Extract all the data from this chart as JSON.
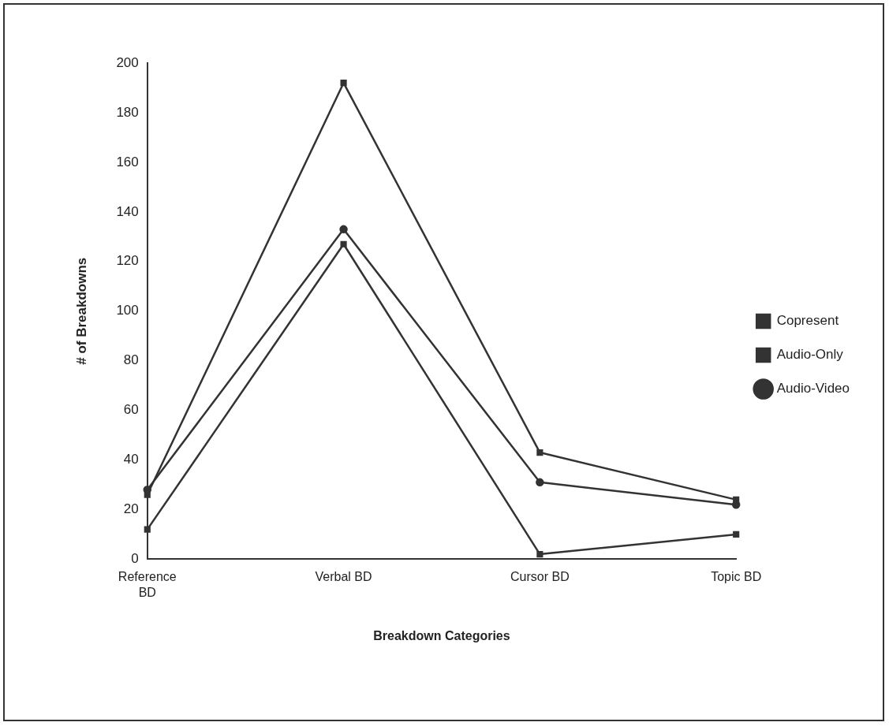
{
  "chart_data": {
    "type": "line",
    "xlabel": "Breakdown Categories",
    "ylabel": "# of Breakdowns",
    "categories": [
      "Reference BD",
      "Verbal BD",
      "Cursor BD",
      "Topic BD"
    ],
    "series": [
      {
        "name": "Copresent",
        "color": "#333333",
        "marker": "square",
        "values": [
          12,
          127,
          2,
          10
        ]
      },
      {
        "name": "Audio-Only",
        "color": "#333333",
        "marker": "square",
        "values": [
          26,
          192,
          43,
          24
        ]
      },
      {
        "name": "Audio-Video",
        "color": "#333333",
        "marker": "circle",
        "values": [
          28,
          133,
          31,
          22
        ]
      }
    ],
    "ylim": [
      0,
      200
    ],
    "yticks": [
      0,
      20,
      40,
      60,
      80,
      100,
      120,
      140,
      160,
      180,
      200
    ],
    "grid": false,
    "legend": "right",
    "line_style": "solid"
  }
}
